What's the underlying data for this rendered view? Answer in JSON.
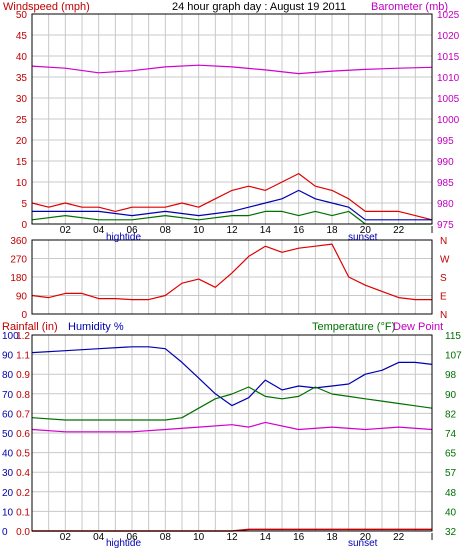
{
  "header": {
    "left_title": "Windspeed (mph)",
    "center_title": "24 hour graph day : August 19 2011",
    "right_title": "Barometer (mb)"
  },
  "colors": {
    "red": "#e00000",
    "dark_red": "#c00000",
    "blue": "#0000b0",
    "green": "#007000",
    "magenta": "#d000d0",
    "grid": "#c8c8c8",
    "frame": "#000000"
  },
  "x_ticks": [
    "02",
    "04",
    "06",
    "08",
    "10",
    "12",
    "14",
    "16",
    "18",
    "20",
    "22",
    "I"
  ],
  "events": {
    "bottom_left": "hightide",
    "bottom_right": "sunset"
  },
  "chart_data": [
    {
      "type": "line",
      "title": "Windspeed / Barometer",
      "x_range_hours": [
        0,
        24
      ],
      "left_axis": {
        "label": "Windspeed (mph)",
        "ticks": [
          "50",
          "45",
          "40",
          "35",
          "30",
          "25",
          "20",
          "15",
          "10",
          "5",
          "0"
        ],
        "ylim": [
          0,
          50
        ]
      },
      "right_axis": {
        "label": "Barometer (mb)",
        "ticks": [
          "1025",
          "1020",
          "1015",
          "1010",
          "1005",
          "1000",
          "995",
          "990",
          "985",
          "980",
          "975"
        ],
        "ylim": [
          975,
          1025
        ]
      },
      "series": [
        {
          "name": "Barometer (mb)",
          "axis": "right",
          "x": [
            0,
            2,
            4,
            6,
            8,
            10,
            12,
            14,
            16,
            18,
            20,
            22,
            24
          ],
          "values": [
            1012.6,
            1012.1,
            1011.0,
            1011.5,
            1012.4,
            1012.8,
            1012.4,
            1011.7,
            1010.8,
            1011.4,
            1011.8,
            1012.1,
            1012.3
          ]
        },
        {
          "name": "Windspeed gust",
          "axis": "left",
          "x": [
            0,
            1,
            2,
            3,
            4,
            5,
            6,
            7,
            8,
            9,
            10,
            11,
            12,
            13,
            14,
            15,
            16,
            17,
            18,
            19,
            20,
            21,
            22,
            23,
            24
          ],
          "values": [
            5,
            4,
            5,
            4,
            4,
            3,
            4,
            4,
            4,
            5,
            4,
            6,
            8,
            9,
            8,
            10,
            12,
            9,
            8,
            6,
            3,
            3,
            3,
            2,
            1
          ]
        },
        {
          "name": "Windspeed average",
          "axis": "left",
          "x": [
            0,
            2,
            4,
            6,
            8,
            10,
            12,
            13,
            14,
            15,
            16,
            17,
            18,
            19,
            20,
            22,
            24
          ],
          "values": [
            3,
            3,
            3,
            2,
            3,
            2,
            3,
            4,
            5,
            6,
            8,
            6,
            5,
            4,
            1,
            1,
            1
          ]
        },
        {
          "name": "Windspeed",
          "axis": "left",
          "x": [
            0,
            2,
            4,
            6,
            8,
            10,
            12,
            13,
            14,
            15,
            16,
            17,
            18,
            19,
            20,
            22,
            24
          ],
          "values": [
            1,
            2,
            1,
            1,
            2,
            1,
            2,
            2,
            3,
            3,
            2,
            3,
            2,
            3,
            0,
            0,
            0
          ]
        }
      ]
    },
    {
      "type": "line",
      "title": "Wind direction",
      "x_range_hours": [
        0,
        24
      ],
      "left_axis": {
        "ticks": [
          "360",
          "270",
          "180",
          "90",
          "0"
        ],
        "ylim": [
          0,
          360
        ]
      },
      "right_axis": {
        "ticks": [
          "N",
          "W",
          "S",
          "E",
          "N"
        ]
      },
      "series": [
        {
          "name": "Wind direction",
          "axis": "left",
          "x": [
            0,
            1,
            2,
            3,
            4,
            5,
            6,
            7,
            8,
            9,
            10,
            11,
            12,
            13,
            14,
            15,
            16,
            17,
            18,
            19,
            20,
            21,
            22,
            23,
            24
          ],
          "values": [
            90,
            80,
            100,
            100,
            75,
            75,
            70,
            70,
            90,
            150,
            170,
            130,
            200,
            280,
            330,
            300,
            320,
            330,
            340,
            180,
            140,
            110,
            80,
            70,
            70
          ]
        }
      ]
    },
    {
      "type": "line",
      "title": "Rainfall / Humidity / Temperature",
      "x_range_hours": [
        0,
        24
      ],
      "left_header": {
        "rainfall": "Rainfall (in)",
        "humidity": "Humidity %"
      },
      "right_header": {
        "temperature": "Temperature (°F)",
        "dew_point": "Dew Point"
      },
      "humidity_ticks": [
        "100",
        "90",
        "80",
        "70",
        "60",
        "50",
        "40",
        "30",
        "20",
        "10",
        "0"
      ],
      "rainfall_ticks": [
        "1.2",
        "1.1",
        "0.9",
        "0.8",
        "0.7",
        "0.6",
        "0.5",
        "0.4",
        "0.2",
        "0.1",
        "0.0"
      ],
      "temperature_ticks": [
        "115",
        "107",
        "98",
        "90",
        "82",
        "74",
        "65",
        "57",
        "48",
        "40",
        "32"
      ],
      "humidity_ylim": [
        0,
        100
      ],
      "temperature_ylim": [
        32,
        115
      ],
      "series": [
        {
          "name": "Humidity %",
          "axis": "humidity",
          "x": [
            0,
            2,
            4,
            6,
            7,
            8,
            9,
            10,
            11,
            12,
            13,
            14,
            15,
            16,
            17,
            18,
            19,
            20,
            21,
            22,
            23,
            24
          ],
          "values": [
            91,
            92,
            93,
            94,
            94,
            93,
            86,
            78,
            70,
            64,
            68,
            77,
            72,
            74,
            73,
            74,
            75,
            80,
            82,
            86,
            86,
            85
          ]
        },
        {
          "name": "Temperature (°F)",
          "axis": "temperature",
          "x": [
            0,
            2,
            4,
            6,
            8,
            9,
            10,
            11,
            12,
            13,
            14,
            15,
            16,
            17,
            18,
            19,
            20,
            21,
            22,
            23,
            24
          ],
          "values": [
            80,
            79,
            79,
            79,
            79,
            80,
            84,
            88,
            90,
            93,
            89,
            88,
            89,
            93,
            90,
            89,
            88,
            87,
            86,
            85,
            84
          ]
        },
        {
          "name": "Dew Point",
          "axis": "temperature",
          "x": [
            0,
            2,
            4,
            6,
            8,
            10,
            12,
            13,
            14,
            16,
            18,
            20,
            22,
            24
          ],
          "values": [
            75,
            74,
            74,
            74,
            75,
            76,
            77,
            76,
            78,
            75,
            76,
            75,
            76,
            75
          ]
        },
        {
          "name": "Rainfall (in)",
          "axis": "rainfall",
          "x": [
            0,
            12,
            13,
            24
          ],
          "values": [
            0.0,
            0.0,
            0.01,
            0.01
          ]
        }
      ]
    }
  ]
}
